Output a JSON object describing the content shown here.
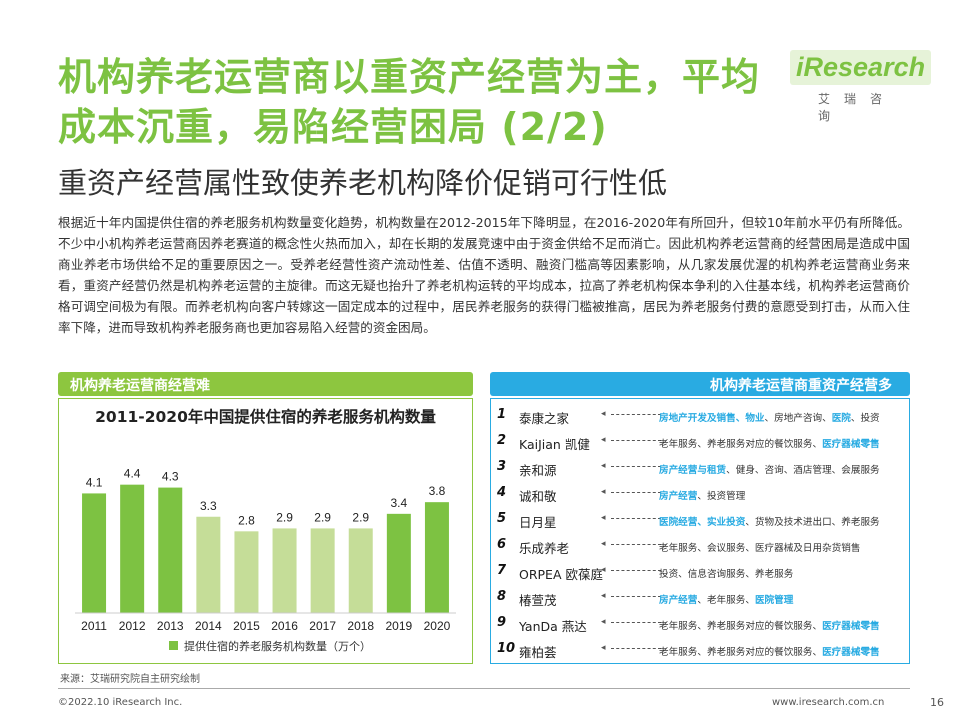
{
  "header": {
    "title": "机构养老运营商以重资产经营为主，平均成本沉重，易陷经营困局 (2/2)",
    "subtitle": "重资产经营属性致使养老机构降价促销可行性低",
    "logo": "iResearch",
    "logo_cn": "艾瑞咨询"
  },
  "body_text": "根据近十年内国提供住宿的养老服务机构数量变化趋势，机构数量在2012-2015年下降明显，在2016-2020年有所回升，但较10年前水平仍有所降低。不少中小机构养老运营商因养老赛道的概念性火热而加入，却在长期的发展竞速中由于资金供给不足而消亡。因此机构养老运营商的经营困局是造成中国商业养老市场供给不足的重要原因之一。受养老经营性资产流动性差、估值不透明、融资门槛高等因素影响，从几家发展优渥的机构养老运营商业务来看，重资产经营仍然是机构养老运营的主旋律。而这无疑也抬升了养老机构运转的平均成本，拉高了养老机构保本争利的入住基本线，机构养老运营商价格可调空间极为有限。而养老机构向客户转嫁这一固定成本的过程中，居民养老服务的获得门槛被推高，居民为养老服务付费的意愿受到打击，从而入住率下降，进而导致机构养老服务商也更加容易陷入经营的资金困局。",
  "left_panel": {
    "banner": "机构养老运营商经营难"
  },
  "right_panel": {
    "banner": "机构养老运营商重资产经营多",
    "rows": [
      {
        "num": "1",
        "name": "泰康之家",
        "biz": [
          {
            "t": "房地产开发及销售、物业",
            "h": true
          },
          {
            "t": "、房地产咨询、",
            "h": false
          },
          {
            "t": "医院",
            "h": true
          },
          {
            "t": "、投资",
            "h": false
          }
        ]
      },
      {
        "num": "2",
        "name": "KaiJian 凯健",
        "biz": [
          {
            "t": "老年服务、养老服务对应的餐饮服务、",
            "h": false
          },
          {
            "t": "医疗器械零售",
            "h": true
          }
        ]
      },
      {
        "num": "3",
        "name": "亲和源",
        "biz": [
          {
            "t": "房产经营与租赁",
            "h": true
          },
          {
            "t": "、健身、咨询、酒店管理、会展服务",
            "h": false
          }
        ]
      },
      {
        "num": "4",
        "name": "诚和敬",
        "biz": [
          {
            "t": "房产经营",
            "h": true
          },
          {
            "t": "、投资管理",
            "h": false
          }
        ]
      },
      {
        "num": "5",
        "name": "日月星",
        "biz": [
          {
            "t": "医院经营、实业投资",
            "h": true
          },
          {
            "t": "、货物及技术进出口、养老服务",
            "h": false
          }
        ]
      },
      {
        "num": "6",
        "name": "乐成养老",
        "biz": [
          {
            "t": "老年服务、会议服务、医疗器械及日用杂货销售",
            "h": false
          }
        ]
      },
      {
        "num": "7",
        "name": "ORPEA 欧葆庭",
        "biz": [
          {
            "t": "投资、信息咨询服务、养老服务",
            "h": false
          }
        ]
      },
      {
        "num": "8",
        "name": "椿萱茂",
        "biz": [
          {
            "t": "房产经营",
            "h": true
          },
          {
            "t": "、老年服务、",
            "h": false
          },
          {
            "t": "医院管理",
            "h": true
          }
        ]
      },
      {
        "num": "9",
        "name": "YanDa 燕达",
        "biz": [
          {
            "t": "老年服务、养老服务对应的餐饮服务、",
            "h": false
          },
          {
            "t": "医疗器械零售",
            "h": true
          }
        ]
      },
      {
        "num": "10",
        "name": "雍柏荟",
        "biz": [
          {
            "t": "老年服务、养老服务对应的餐饮服务、",
            "h": false
          },
          {
            "t": "医疗器械零售",
            "h": true
          }
        ]
      }
    ]
  },
  "chart_data": {
    "type": "bar",
    "title": "2011-2020年中国提供住宿的养老服务机构数量",
    "categories": [
      "2011",
      "2012",
      "2013",
      "2014",
      "2015",
      "2016",
      "2017",
      "2018",
      "2019",
      "2020"
    ],
    "series": [
      {
        "name": "提供住宿的养老服务机构数量（万个）",
        "values": [
          4.1,
          4.4,
          4.3,
          3.3,
          2.8,
          2.9,
          2.9,
          2.9,
          3.4,
          3.8
        ]
      }
    ],
    "highlight_colors": [
      "#c5dd98",
      "#7dc242"
    ],
    "ylim": [
      0,
      4.8
    ],
    "grid": false,
    "legend": "bottom"
  },
  "footer": {
    "source": "来源：艾瑞研究院自主研究绘制",
    "copyright": "©2022.10 iResearch Inc.",
    "site": "www.iresearch.com.cn",
    "page": "16"
  }
}
